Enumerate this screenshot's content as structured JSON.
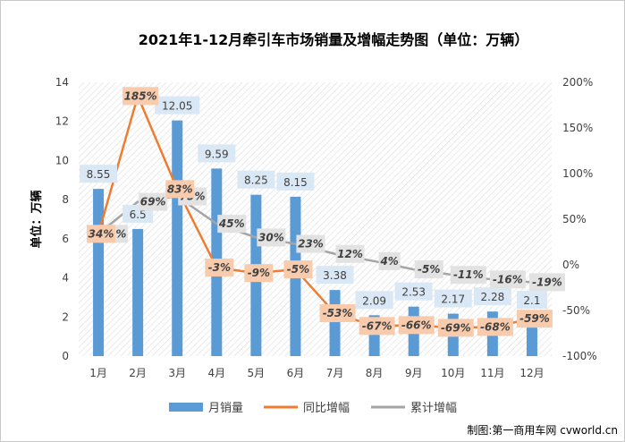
{
  "chart_data": {
    "type": "bar",
    "title": "2021年1-12月牵引车市场销量及增幅走势图（单位：万辆）",
    "ylabel": "单位：万辆",
    "categories": [
      "1月",
      "2月",
      "3月",
      "4月",
      "5月",
      "6月",
      "7月",
      "8月",
      "9月",
      "10月",
      "11月",
      "12月"
    ],
    "ylim": [
      0,
      14
    ],
    "y_ticks": [
      "0",
      "2",
      "4",
      "6",
      "8",
      "10",
      "12",
      "14"
    ],
    "y2lim": [
      -100,
      200
    ],
    "y2_ticks": [
      "-100%",
      "-50%",
      "0%",
      "50%",
      "100%",
      "150%",
      "200%"
    ],
    "series": [
      {
        "name": "月销量",
        "type": "bar",
        "axis": "left",
        "color": "#5b9bd5",
        "values": [
          8.55,
          6.5,
          12.05,
          9.59,
          8.25,
          8.15,
          3.38,
          2.09,
          2.53,
          2.17,
          2.28,
          2.1
        ],
        "labels": [
          "8.55",
          "6.5",
          "12.05",
          "9.59",
          "8.25",
          "8.15",
          "3.38",
          "2.09",
          "2.53",
          "2.17",
          "2.28",
          "2.1"
        ]
      },
      {
        "name": "同比增幅",
        "type": "line",
        "axis": "right",
        "color": "#ed7d31",
        "values": [
          34,
          185,
          83,
          -3,
          -9,
          -5,
          -53,
          -67,
          -66,
          -69,
          -68,
          -59
        ],
        "labels": [
          "34%",
          "185%",
          "83%",
          "-3%",
          "-9%",
          "-5%",
          "-53%",
          "-67%",
          "-66%",
          "-69%",
          "-68%",
          "-59%"
        ]
      },
      {
        "name": "累计增幅",
        "type": "line",
        "axis": "right",
        "color": "#a5a5a5",
        "values": [
          34,
          69,
          75,
          45,
          30,
          23,
          12,
          4,
          -5,
          -11,
          -16,
          -19
        ],
        "labels": [
          "34%",
          "69%",
          "75%",
          "45%",
          "30%",
          "23%",
          "12%",
          "4%",
          "-5%",
          "-11%",
          "-16%",
          "-19%"
        ]
      }
    ],
    "legend_position": "bottom",
    "grid": false,
    "plot_background": "hatched"
  },
  "source_note": "制图:第一商用车网 cvworld.cn"
}
